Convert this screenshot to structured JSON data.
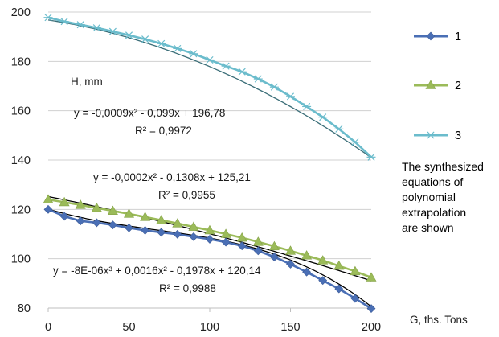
{
  "chart_data": {
    "type": "line",
    "title": "",
    "xlabel": "G, ths. Tons",
    "ylabel": "H, mm",
    "xlim": [
      0,
      200
    ],
    "ylim": [
      80,
      200
    ],
    "x_ticks": [
      "0",
      "50",
      "100",
      "150",
      "200"
    ],
    "y_ticks": [
      "80",
      "100",
      "120",
      "140",
      "160",
      "180",
      "200"
    ],
    "grid": "horizontal",
    "legend_position": "right",
    "x": [
      0,
      10,
      20,
      30,
      40,
      50,
      60,
      70,
      80,
      90,
      100,
      110,
      120,
      130,
      140,
      150,
      160,
      170,
      180,
      190,
      200
    ],
    "series": [
      {
        "name": "1",
        "color": "#4a6fb5",
        "marker": "diamond",
        "values": [
          120,
          117.2,
          115.3,
          114.6,
          113.7,
          112.5,
          111.5,
          110.7,
          109.9,
          108.9,
          107.9,
          106.7,
          105.2,
          103.2,
          100.7,
          97.8,
          94.6,
          91.2,
          87.8,
          83.9,
          79.8
        ]
      },
      {
        "name": "2",
        "color": "#9bbb59",
        "marker": "triangle",
        "values": [
          124,
          122.9,
          121.8,
          120.6,
          119.4,
          118.2,
          116.9,
          115.6,
          114.3,
          112.9,
          111.5,
          110.0,
          108.5,
          106.8,
          105.0,
          103.2,
          101.3,
          99.3,
          97.1,
          94.9,
          92.4
        ]
      },
      {
        "name": "3",
        "color": "#6bbccc",
        "marker": "asterisk",
        "values": [
          197.8,
          196.2,
          194.9,
          193.6,
          192.1,
          190.6,
          189.0,
          187.2,
          185.2,
          183.1,
          180.6,
          178.1,
          175.8,
          172.9,
          169.6,
          165.8,
          161.7,
          157.4,
          152.6,
          147.3,
          141.2
        ]
      }
    ],
    "trendlines": [
      {
        "series": "1",
        "color": "#000000"
      },
      {
        "series": "2",
        "color": "#000000"
      },
      {
        "series": "3",
        "color": "#3b6e78"
      }
    ],
    "annotations": {
      "y_axis_title": "H, mm",
      "x_axis_title": "G, ths. Tons",
      "eq3": "y = -0,0009x² - 0,099x + 196,78",
      "r3": "R² = 0,9972",
      "eq2": "y = -0,0002x² - 0,1308x + 125,21",
      "r2": "R² = 0,9955",
      "eq1": "y = -8E-06x³ + 0,0016x² - 0,1978x + 120,14",
      "r1": "R² = 0,9988",
      "note": [
        "The synthesized",
        "equations of",
        "polynomial",
        "extrapolation",
        "are shown"
      ]
    }
  }
}
